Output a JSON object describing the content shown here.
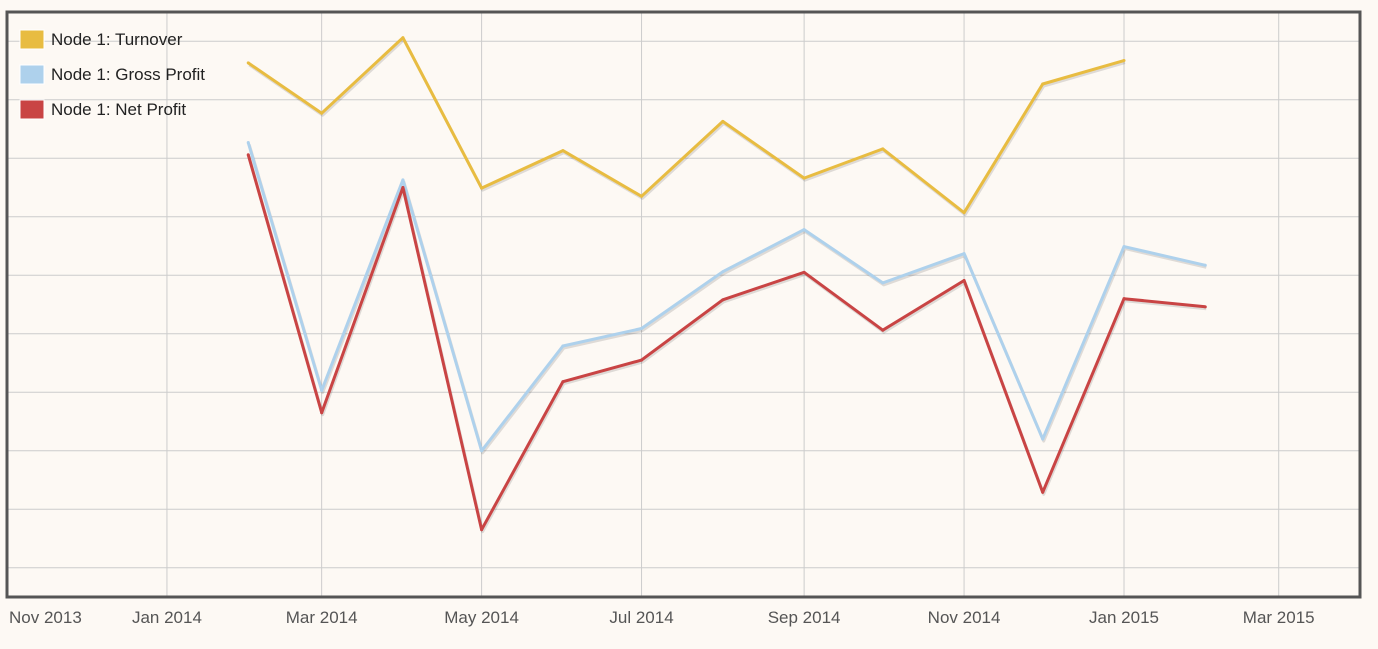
{
  "chart_data": {
    "type": "line",
    "title": "",
    "xlabel": "",
    "ylabel": "",
    "x_ticks": [
      "Nov 2013",
      "Jan 2014",
      "Mar 2014",
      "May 2014",
      "Jul 2014",
      "Sep 2014",
      "Nov 2014",
      "Jan 2015",
      "Mar 2015"
    ],
    "x_range": [
      "2013-11-01",
      "2015-04-01"
    ],
    "y_axis_labels_shown": false,
    "grid": true,
    "legend_position": "top-left",
    "series": [
      {
        "name": "Node 1: Turnover",
        "color": "#e8bc41",
        "points": [
          {
            "x": "2014-02-01",
            "y": 8.63
          },
          {
            "x": "2014-03-01",
            "y": 7.77
          },
          {
            "x": "2014-04-01",
            "y": 9.06
          },
          {
            "x": "2014-05-01",
            "y": 6.49
          },
          {
            "x": "2014-06-01",
            "y": 7.13
          },
          {
            "x": "2014-07-01",
            "y": 6.35
          },
          {
            "x": "2014-08-01",
            "y": 7.63
          },
          {
            "x": "2014-09-01",
            "y": 6.66
          },
          {
            "x": "2014-10-01",
            "y": 7.16
          },
          {
            "x": "2014-11-01",
            "y": 6.07
          },
          {
            "x": "2014-12-01",
            "y": 8.27
          },
          {
            "x": "2015-01-01",
            "y": 8.67
          }
        ]
      },
      {
        "name": "Node 1: Gross Profit",
        "color": "#aed1ec",
        "points": [
          {
            "x": "2014-02-01",
            "y": 7.27
          },
          {
            "x": "2014-03-01",
            "y": 3.03
          },
          {
            "x": "2014-04-01",
            "y": 6.63
          },
          {
            "x": "2014-05-01",
            "y": 2.0
          },
          {
            "x": "2014-06-01",
            "y": 3.79
          },
          {
            "x": "2014-07-01",
            "y": 4.09
          },
          {
            "x": "2014-08-01",
            "y": 5.06
          },
          {
            "x": "2014-09-01",
            "y": 5.78
          },
          {
            "x": "2014-10-01",
            "y": 4.87
          },
          {
            "x": "2014-11-01",
            "y": 5.37
          },
          {
            "x": "2014-12-01",
            "y": 2.2
          },
          {
            "x": "2015-01-01",
            "y": 5.49
          },
          {
            "x": "2015-02-01",
            "y": 5.17
          }
        ]
      },
      {
        "name": "Node 1: Net Profit",
        "color": "#c94444",
        "points": [
          {
            "x": "2014-02-01",
            "y": 7.06
          },
          {
            "x": "2014-03-01",
            "y": 2.65
          },
          {
            "x": "2014-04-01",
            "y": 6.5
          },
          {
            "x": "2014-05-01",
            "y": 0.65
          },
          {
            "x": "2014-06-01",
            "y": 3.18
          },
          {
            "x": "2014-07-01",
            "y": 3.55
          },
          {
            "x": "2014-08-01",
            "y": 4.58
          },
          {
            "x": "2014-09-01",
            "y": 5.05
          },
          {
            "x": "2014-10-01",
            "y": 4.06
          },
          {
            "x": "2014-11-01",
            "y": 4.91
          },
          {
            "x": "2014-12-01",
            "y": 1.29
          },
          {
            "x": "2015-01-01",
            "y": 4.6
          },
          {
            "x": "2015-02-01",
            "y": 4.46
          }
        ]
      }
    ],
    "ylim": [
      -0.5,
      9.5
    ]
  },
  "colors": {
    "background": "#fdf9f4",
    "frame": "#555555",
    "grid": "#cccccc"
  }
}
